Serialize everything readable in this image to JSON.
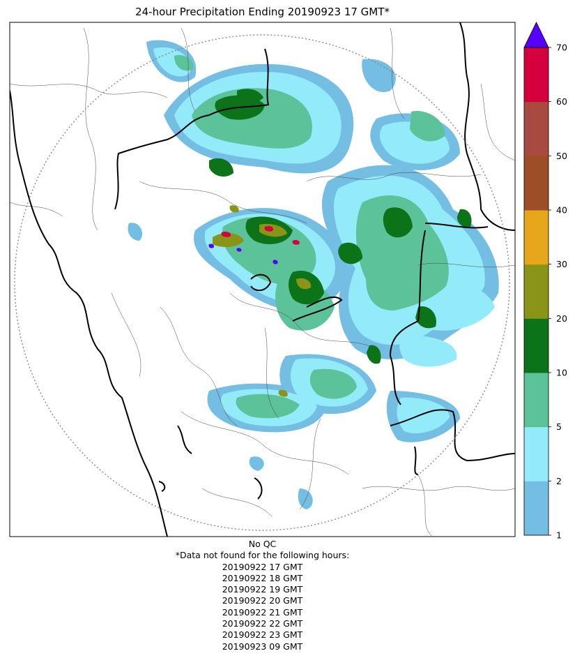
{
  "title": "24-hour Precipitation Ending 20190923 17 GMT*",
  "qc_label": "No QC",
  "missing_header": "*Data not found for the following hours:",
  "missing_hours": [
    "20190922 17 GMT",
    "20190922 18 GMT",
    "20190922 19 GMT",
    "20190922 20 GMT",
    "20190922 21 GMT",
    "20190922 22 GMT",
    "20190922 23 GMT",
    "20190923 09 GMT"
  ],
  "colorbar": {
    "bins": [
      {
        "from": 1,
        "to": 2,
        "color": "#74bde3"
      },
      {
        "from": 2,
        "to": 5,
        "color": "#93ebfa"
      },
      {
        "from": 5,
        "to": 10,
        "color": "#5cc29a"
      },
      {
        "from": 10,
        "to": 20,
        "color": "#0d7319"
      },
      {
        "from": 20,
        "to": 30,
        "color": "#8a9416"
      },
      {
        "from": 30,
        "to": 40,
        "color": "#e6a81a"
      },
      {
        "from": 40,
        "to": 50,
        "color": "#9c4f26"
      },
      {
        "from": 50,
        "to": 60,
        "color": "#a84a3f"
      },
      {
        "from": 60,
        "to": 70,
        "color": "#d4003d"
      }
    ],
    "ticks": [
      "1",
      "2",
      "5",
      "10",
      "20",
      "30",
      "40",
      "50",
      "60",
      "70"
    ],
    "extend_color": "#5500ff"
  }
}
